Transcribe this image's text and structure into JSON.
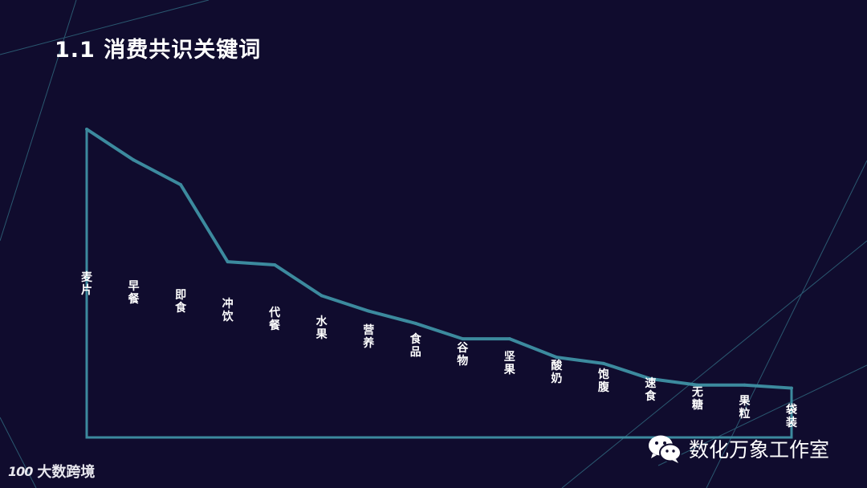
{
  "title": "1.1 消费共识关键词",
  "footer": {
    "logo_mark": "100",
    "brand": "大数跨境"
  },
  "watermark": {
    "icon": "wechat-icon",
    "text": "数化万象工作室"
  },
  "colors": {
    "background": "#100c2e",
    "line": "#3c8a9e",
    "decor_line": "#2a5870",
    "text": "#ffffff"
  },
  "chart_data": {
    "type": "line",
    "title": "",
    "xlabel": "",
    "ylabel": "",
    "categories": [
      "麦片",
      "早餐",
      "即食",
      "冲饮",
      "代餐",
      "水果",
      "营养",
      "食品",
      "谷物",
      "坚果",
      "酸奶",
      "饱腹",
      "速食",
      "无糖",
      "果粒",
      "袋装"
    ],
    "values": [
      100,
      90,
      82,
      57,
      56,
      46,
      41,
      37,
      32,
      32,
      26,
      24,
      19,
      17,
      17,
      16
    ],
    "ylim": [
      0,
      100
    ],
    "grid": false,
    "legend": "none"
  }
}
